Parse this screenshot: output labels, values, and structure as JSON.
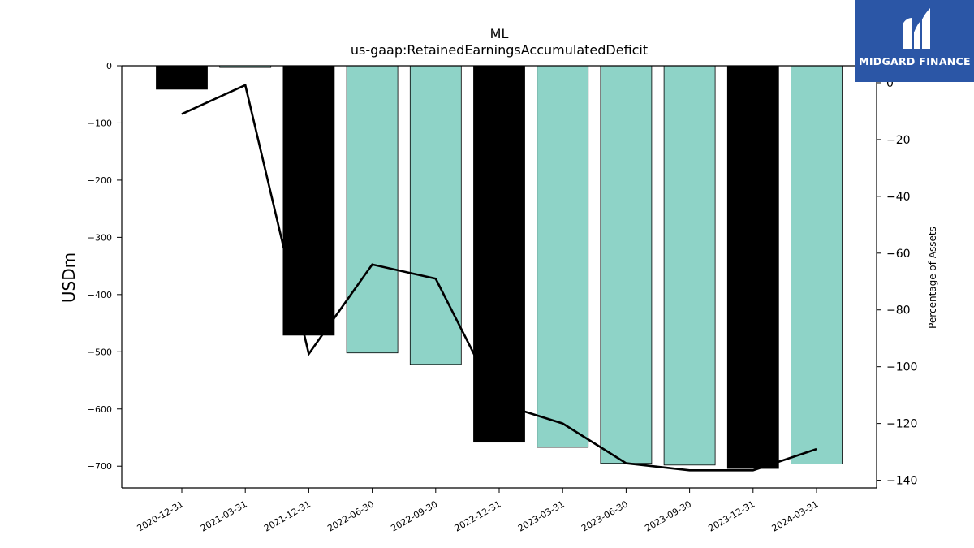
{
  "chart_data": {
    "type": "bar",
    "title": "ML",
    "subtitle": "us-gaap:RetainedEarningsAccumulatedDeficit",
    "ylabel": "USDm",
    "ylabel_right": "Percentage of Assets",
    "categories": [
      "2020-12-31",
      "2021-03-31",
      "2021-12-31",
      "2022-06-30",
      "2022-09-30",
      "2022-12-31",
      "2023-03-31",
      "2023-06-30",
      "2023-09-30",
      "2023-12-31",
      "2024-03-31"
    ],
    "series": [
      {
        "values": [
          -41,
          -3,
          -471,
          -502,
          -522,
          -658,
          -667,
          -695,
          -698,
          -704,
          -696
        ],
        "bar_colors": [
          "#000000",
          "#8ed3c7",
          "#000000",
          "#8ed3c7",
          "#8ed3c7",
          "#000000",
          "#8ed3c7",
          "#8ed3c7",
          "#8ed3c7",
          "#000000",
          "#8ed3c7"
        ]
      },
      {
        "axis": "right",
        "type": "line",
        "color": "#000000",
        "values": [
          -11,
          -0.8,
          -95.5,
          -64,
          -69,
          -113,
          -120,
          -134,
          -136.5,
          -136.5,
          -129
        ]
      }
    ],
    "ylim": [
      -738,
      0
    ],
    "yticks": [
      0,
      -100,
      -200,
      -300,
      -400,
      -500,
      -600,
      -700
    ],
    "y2lim": [
      -142.7,
      6
    ],
    "y2ticks": [
      0,
      -20,
      -40,
      -60,
      -80,
      -100,
      -120,
      -140
    ],
    "grid": false,
    "legend": "none"
  },
  "logo": {
    "text": "MIDGARD FINANCE",
    "color": "#2b56a6"
  }
}
